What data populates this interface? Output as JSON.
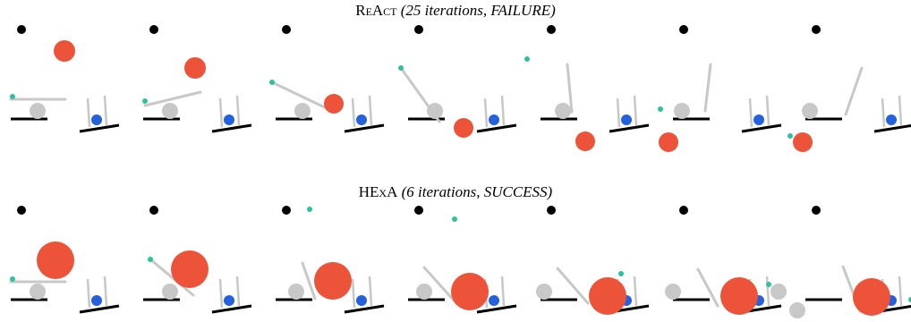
{
  "rows": [
    {
      "method": "ReAct",
      "detail": " (25 iterations, FAILURE)",
      "frame_count": 7
    },
    {
      "method": "HExA",
      "detail": " (6 iterations, SUCCESS)",
      "frame_count": 7
    }
  ],
  "colors": {
    "red_ball": "#ec5338",
    "blue_ball": "#2561dc",
    "green_ball": "#29c49b",
    "gray_ball": "#c8c8c8",
    "gray_bar": "#c8c8c8",
    "black_ball": "#000000",
    "black_platform": "#000000"
  }
}
